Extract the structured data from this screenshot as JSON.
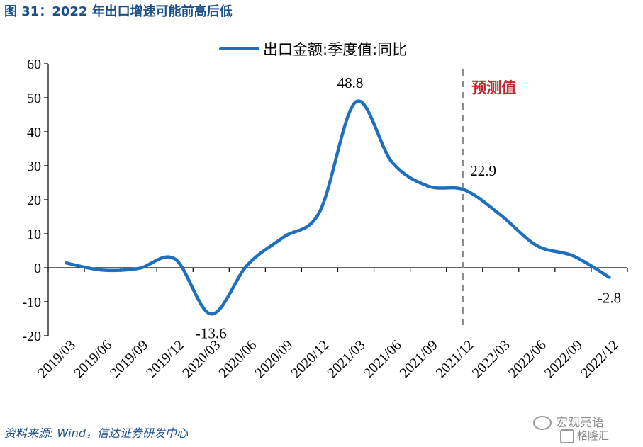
{
  "figure": {
    "title": "图 31：2022 年出口增速可能前高后低",
    "source": "资料来源: Wind，信达证券研发中心",
    "watermark_1": "宏观亮语",
    "watermark_2": "格隆汇"
  },
  "chart_data": {
    "type": "line",
    "title": "",
    "xlabel": "",
    "ylabel": "",
    "ylim": [
      -20,
      60
    ],
    "yticks": [
      -20,
      -10,
      0,
      10,
      20,
      30,
      40,
      50,
      60
    ],
    "grid": false,
    "legend_position": "top",
    "categories": [
      "2019/03",
      "2019/06",
      "2019/09",
      "2019/12",
      "2020/03",
      "2020/06",
      "2020/09",
      "2020/12",
      "2021/03",
      "2021/06",
      "2021/09",
      "2021/12",
      "2022/03",
      "2022/06",
      "2022/09",
      "2022/12"
    ],
    "series": [
      {
        "name": "出口金额:季度值:同比",
        "color": "#1f6fbf",
        "values": [
          1.4,
          -0.7,
          -0.2,
          2.6,
          -13.6,
          0.8,
          9.0,
          16.5,
          48.8,
          31.0,
          24.0,
          22.9,
          15.5,
          6.5,
          3.5,
          -2.8
        ]
      }
    ],
    "data_labels": [
      {
        "index": 4,
        "text": "-13.6"
      },
      {
        "index": 8,
        "text": "48.8"
      },
      {
        "index": 11,
        "text": "22.9"
      },
      {
        "index": 15,
        "text": "-2.8"
      }
    ],
    "forecast_divider": {
      "at_category": "2021/12",
      "label": "预测值",
      "label_color": "#c0282d",
      "line_color": "#8c8c8c"
    }
  }
}
